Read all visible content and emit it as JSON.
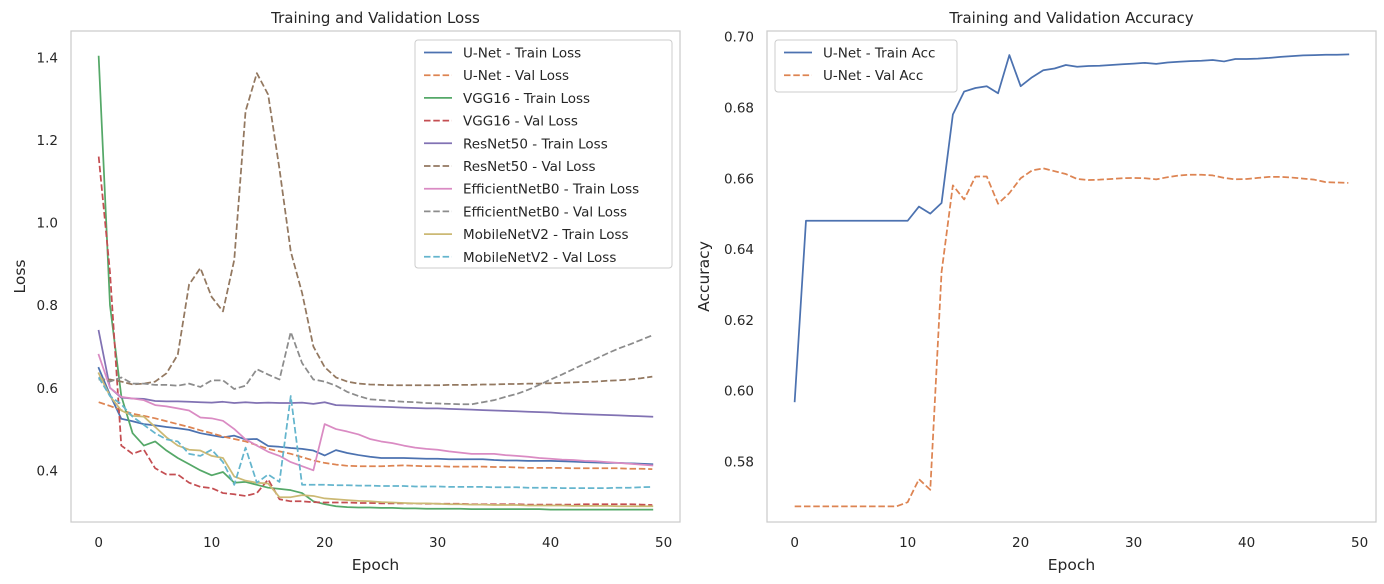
{
  "chart_data": [
    {
      "type": "line",
      "title": "Training and Validation Loss",
      "xlabel": "Epoch",
      "ylabel": "Loss",
      "xlim": [
        -2.45,
        51.45
      ],
      "ylim": [
        0.2749,
        1.4641
      ],
      "xticks": [
        0,
        10,
        20,
        30,
        40,
        50
      ],
      "xtick_labels": [
        "0",
        "10",
        "20",
        "30",
        "40",
        "50"
      ],
      "yticks": [
        0.4,
        0.6,
        0.8,
        1.0,
        1.2,
        1.4
      ],
      "ytick_labels": [
        "0.4",
        "0.6",
        "0.8",
        "1.0",
        "1.2",
        "1.4"
      ],
      "grid": false,
      "legend_position": "top-right",
      "series": [
        {
          "name": "U-Net - Train Loss",
          "color": "#4c72b0",
          "dash": "solid",
          "values": [
            0.648,
            0.583,
            0.525,
            0.519,
            0.512,
            0.509,
            0.505,
            0.502,
            0.498,
            0.49,
            0.485,
            0.48,
            0.484,
            0.475,
            0.476,
            0.459,
            0.457,
            0.454,
            0.452,
            0.448,
            0.436,
            0.449,
            0.442,
            0.437,
            0.433,
            0.43,
            0.43,
            0.43,
            0.429,
            0.428,
            0.428,
            0.427,
            0.427,
            0.427,
            0.427,
            0.425,
            0.424,
            0.424,
            0.423,
            0.423,
            0.423,
            0.422,
            0.421,
            0.42,
            0.419,
            0.418,
            0.418,
            0.417,
            0.416,
            0.415
          ]
        },
        {
          "name": "U-Net - Val Loss",
          "color": "#dd8452",
          "dash": "dashed",
          "values": [
            0.565,
            0.556,
            0.546,
            0.537,
            0.532,
            0.526,
            0.519,
            0.512,
            0.505,
            0.497,
            0.49,
            0.482,
            0.476,
            0.47,
            0.461,
            0.452,
            0.446,
            0.44,
            0.432,
            0.424,
            0.418,
            0.414,
            0.411,
            0.41,
            0.41,
            0.41,
            0.411,
            0.412,
            0.411,
            0.41,
            0.41,
            0.409,
            0.409,
            0.409,
            0.409,
            0.408,
            0.408,
            0.407,
            0.406,
            0.406,
            0.406,
            0.406,
            0.405,
            0.405,
            0.405,
            0.405,
            0.405,
            0.404,
            0.404,
            0.403
          ]
        },
        {
          "name": "VGG16 - Train Loss",
          "color": "#55a868",
          "dash": "solid",
          "values": [
            1.402,
            0.8,
            0.58,
            0.49,
            0.46,
            0.47,
            0.448,
            0.43,
            0.415,
            0.4,
            0.388,
            0.396,
            0.37,
            0.372,
            0.365,
            0.358,
            0.355,
            0.352,
            0.345,
            0.325,
            0.318,
            0.313,
            0.311,
            0.31,
            0.31,
            0.309,
            0.309,
            0.308,
            0.308,
            0.307,
            0.307,
            0.307,
            0.307,
            0.306,
            0.306,
            0.306,
            0.306,
            0.306,
            0.306,
            0.306,
            0.305,
            0.305,
            0.305,
            0.305,
            0.305,
            0.305,
            0.305,
            0.305,
            0.305,
            0.305
          ]
        },
        {
          "name": "VGG16 - Val Loss",
          "color": "#c44e52",
          "dash": "dashed",
          "values": [
            1.16,
            0.88,
            0.46,
            0.44,
            0.45,
            0.405,
            0.39,
            0.39,
            0.37,
            0.36,
            0.357,
            0.345,
            0.342,
            0.338,
            0.345,
            0.378,
            0.33,
            0.325,
            0.325,
            0.323,
            0.322,
            0.322,
            0.322,
            0.321,
            0.321,
            0.32,
            0.32,
            0.32,
            0.32,
            0.319,
            0.319,
            0.319,
            0.319,
            0.318,
            0.318,
            0.318,
            0.318,
            0.318,
            0.317,
            0.317,
            0.317,
            0.317,
            0.317,
            0.318,
            0.318,
            0.318,
            0.318,
            0.318,
            0.317,
            0.316
          ]
        },
        {
          "name": "ResNet50 - Train Loss",
          "color": "#8172b3",
          "dash": "solid",
          "values": [
            0.738,
            0.6,
            0.576,
            0.574,
            0.573,
            0.568,
            0.567,
            0.567,
            0.566,
            0.565,
            0.564,
            0.566,
            0.563,
            0.565,
            0.563,
            0.564,
            0.563,
            0.563,
            0.564,
            0.561,
            0.565,
            0.558,
            0.557,
            0.556,
            0.555,
            0.554,
            0.553,
            0.552,
            0.551,
            0.55,
            0.55,
            0.549,
            0.548,
            0.547,
            0.546,
            0.545,
            0.544,
            0.543,
            0.542,
            0.541,
            0.54,
            0.538,
            0.537,
            0.536,
            0.535,
            0.534,
            0.533,
            0.532,
            0.531,
            0.53
          ]
        },
        {
          "name": "ResNet50 - Val Loss",
          "color": "#937860",
          "dash": "dashed",
          "values": [
            0.62,
            0.62,
            0.615,
            0.608,
            0.61,
            0.615,
            0.635,
            0.68,
            0.85,
            0.89,
            0.82,
            0.785,
            0.91,
            1.27,
            1.362,
            1.31,
            1.13,
            0.93,
            0.83,
            0.7,
            0.65,
            0.625,
            0.615,
            0.61,
            0.608,
            0.607,
            0.606,
            0.606,
            0.606,
            0.606,
            0.606,
            0.607,
            0.607,
            0.607,
            0.608,
            0.608,
            0.609,
            0.609,
            0.61,
            0.61,
            0.611,
            0.612,
            0.613,
            0.614,
            0.615,
            0.617,
            0.618,
            0.62,
            0.623,
            0.627
          ]
        },
        {
          "name": "EfficientNetB0 - Train Loss",
          "color": "#da8bc3",
          "dash": "solid",
          "values": [
            0.68,
            0.6,
            0.578,
            0.574,
            0.57,
            0.558,
            0.555,
            0.55,
            0.545,
            0.528,
            0.526,
            0.52,
            0.5,
            0.475,
            0.46,
            0.445,
            0.435,
            0.42,
            0.41,
            0.4,
            0.512,
            0.5,
            0.494,
            0.487,
            0.476,
            0.47,
            0.466,
            0.46,
            0.455,
            0.452,
            0.45,
            0.446,
            0.443,
            0.44,
            0.44,
            0.44,
            0.437,
            0.435,
            0.433,
            0.43,
            0.428,
            0.426,
            0.425,
            0.423,
            0.422,
            0.42,
            0.418,
            0.416,
            0.414,
            0.412
          ]
        },
        {
          "name": "EfficientNetB0 - Val Loss",
          "color": "#8c8c8c",
          "dash": "dashed",
          "values": [
            0.625,
            0.615,
            0.625,
            0.61,
            0.61,
            0.607,
            0.607,
            0.605,
            0.61,
            0.602,
            0.618,
            0.618,
            0.597,
            0.605,
            0.645,
            0.632,
            0.62,
            0.735,
            0.66,
            0.62,
            0.615,
            0.605,
            0.59,
            0.58,
            0.572,
            0.57,
            0.568,
            0.566,
            0.565,
            0.563,
            0.562,
            0.561,
            0.56,
            0.56,
            0.565,
            0.57,
            0.578,
            0.585,
            0.595,
            0.607,
            0.62,
            0.632,
            0.645,
            0.658,
            0.67,
            0.683,
            0.695,
            0.705,
            0.716,
            0.727
          ]
        },
        {
          "name": "MobileNetV2 - Train Loss",
          "color": "#ccb974",
          "dash": "solid",
          "values": [
            0.635,
            0.58,
            0.545,
            0.532,
            0.53,
            0.505,
            0.48,
            0.46,
            0.45,
            0.448,
            0.435,
            0.43,
            0.385,
            0.375,
            0.37,
            0.368,
            0.335,
            0.335,
            0.34,
            0.338,
            0.332,
            0.33,
            0.328,
            0.326,
            0.325,
            0.323,
            0.322,
            0.321,
            0.32,
            0.32,
            0.319,
            0.318,
            0.318,
            0.317,
            0.317,
            0.316,
            0.316,
            0.316,
            0.315,
            0.315,
            0.315,
            0.315,
            0.314,
            0.314,
            0.314,
            0.314,
            0.313,
            0.313,
            0.313,
            0.313
          ]
        },
        {
          "name": "MobileNetV2 - Val Loss",
          "color": "#64b5cd",
          "dash": "dashed",
          "values": [
            0.625,
            0.58,
            0.56,
            0.53,
            0.51,
            0.49,
            0.475,
            0.47,
            0.44,
            0.435,
            0.45,
            0.42,
            0.365,
            0.455,
            0.37,
            0.39,
            0.372,
            0.58,
            0.365,
            0.365,
            0.365,
            0.364,
            0.364,
            0.363,
            0.363,
            0.362,
            0.362,
            0.362,
            0.361,
            0.361,
            0.361,
            0.36,
            0.36,
            0.36,
            0.36,
            0.359,
            0.359,
            0.359,
            0.358,
            0.358,
            0.358,
            0.357,
            0.357,
            0.357,
            0.357,
            0.357,
            0.358,
            0.358,
            0.359,
            0.36
          ]
        }
      ]
    },
    {
      "type": "line",
      "title": "Training and Validation Accuracy",
      "xlabel": "Epoch",
      "ylabel": "Accuracy",
      "xlim": [
        -2.45,
        51.45
      ],
      "ylim": [
        0.5629,
        0.7016
      ],
      "xticks": [
        0,
        10,
        20,
        30,
        40,
        50
      ],
      "xtick_labels": [
        "0",
        "10",
        "20",
        "30",
        "40",
        "50"
      ],
      "yticks": [
        0.58,
        0.6,
        0.62,
        0.64,
        0.66,
        0.68,
        0.7
      ],
      "ytick_labels": [
        "0.58",
        "0.60",
        "0.62",
        "0.64",
        "0.66",
        "0.68",
        "0.70"
      ],
      "grid": false,
      "legend_position": "top-left",
      "series": [
        {
          "name": "U-Net - Train Acc",
          "color": "#4c72b0",
          "dash": "solid",
          "values": [
            0.597,
            0.648,
            0.648,
            0.648,
            0.648,
            0.648,
            0.648,
            0.648,
            0.648,
            0.648,
            0.648,
            0.652,
            0.65,
            0.653,
            0.678,
            0.6845,
            0.6855,
            0.686,
            0.684,
            0.6948,
            0.686,
            0.6885,
            0.6905,
            0.691,
            0.692,
            0.6915,
            0.6917,
            0.6918,
            0.692,
            0.6922,
            0.6924,
            0.6926,
            0.6923,
            0.6927,
            0.6929,
            0.6931,
            0.6932,
            0.6934,
            0.693,
            0.6937,
            0.6937,
            0.6938,
            0.694,
            0.6943,
            0.6945,
            0.6947,
            0.6948,
            0.6949,
            0.6949,
            0.695
          ]
        },
        {
          "name": "U-Net - Val Acc",
          "color": "#dd8452",
          "dash": "dashed",
          "values": [
            0.5673,
            0.5673,
            0.5673,
            0.5673,
            0.5673,
            0.5673,
            0.5673,
            0.5673,
            0.5673,
            0.5673,
            0.5685,
            0.575,
            0.572,
            0.6335,
            0.658,
            0.654,
            0.6605,
            0.6605,
            0.6528,
            0.6558,
            0.66,
            0.6622,
            0.6628,
            0.662,
            0.6612,
            0.6598,
            0.6595,
            0.6596,
            0.6598,
            0.66,
            0.6601,
            0.66,
            0.6597,
            0.6603,
            0.6608,
            0.661,
            0.661,
            0.6608,
            0.6601,
            0.6597,
            0.6598,
            0.6601,
            0.6604,
            0.6604,
            0.6602,
            0.6599,
            0.6596,
            0.6589,
            0.6588,
            0.6587
          ]
        }
      ]
    }
  ]
}
